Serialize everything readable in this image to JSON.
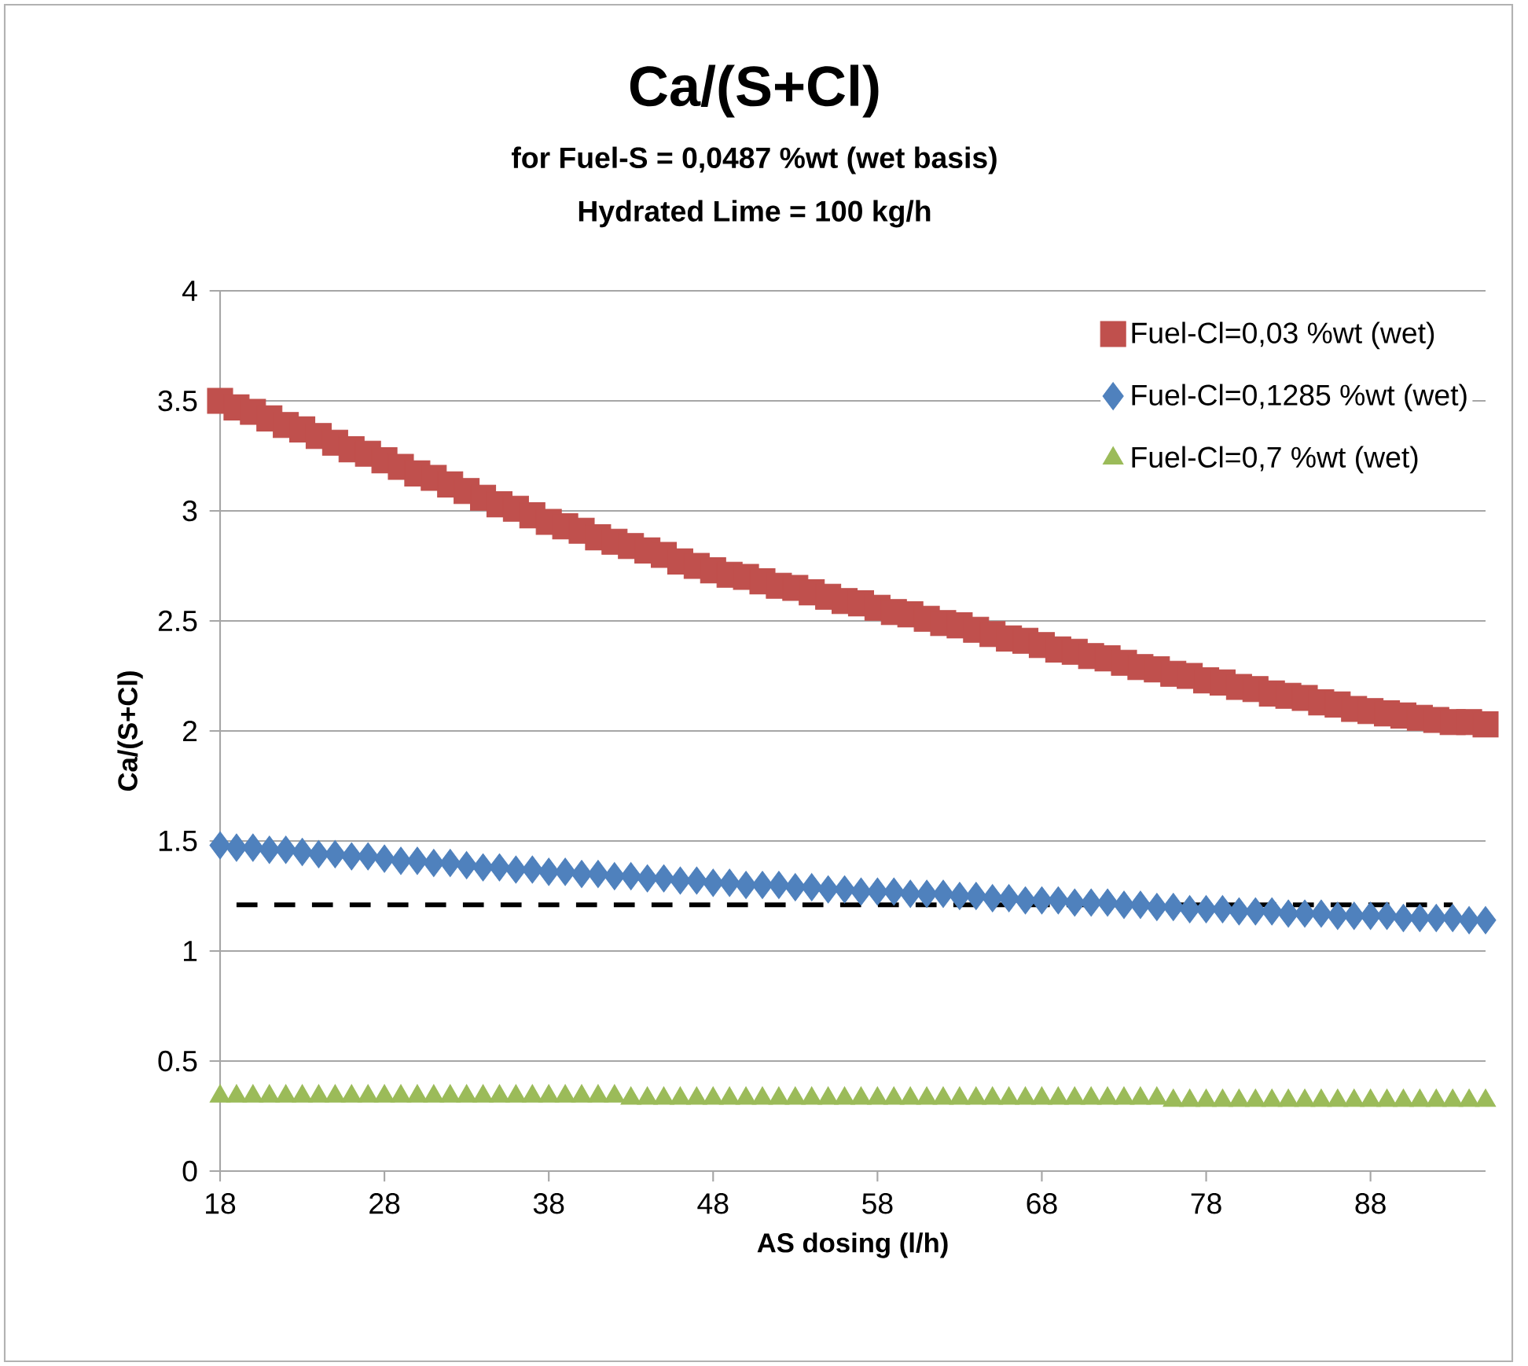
{
  "chart_data": {
    "type": "scatter",
    "title": "Ca/(S+Cl)",
    "subtitle": "for Fuel-S = 0,0487 %wt (wet basis)",
    "annotations": [
      "Hydrated Lime = 100 kg/h"
    ],
    "xlabel": "AS dosing (l/h)",
    "ylabel": "Ca/(S+Cl)",
    "x": [
      18,
      19,
      20,
      21,
      22,
      23,
      24,
      25,
      26,
      27,
      28,
      29,
      30,
      31,
      32,
      33,
      34,
      35,
      36,
      37,
      38,
      39,
      40,
      41,
      42,
      43,
      44,
      45,
      46,
      47,
      48,
      49,
      50,
      51,
      52,
      53,
      54,
      55,
      56,
      57,
      58,
      59,
      60,
      61,
      62,
      63,
      64,
      65,
      66,
      67,
      68,
      69,
      70,
      71,
      72,
      73,
      74,
      75,
      76,
      77,
      78,
      79,
      80,
      81,
      82,
      83,
      84,
      85,
      86,
      87,
      88,
      89,
      90,
      91,
      92,
      93,
      94,
      95
    ],
    "series": [
      {
        "name": "Fuel-Cl=0,03 %wt (wet)",
        "color": "#c0504d",
        "marker": "square",
        "values": [
          3.5,
          3.47,
          3.45,
          3.42,
          3.39,
          3.37,
          3.34,
          3.31,
          3.28,
          3.26,
          3.23,
          3.2,
          3.17,
          3.15,
          3.12,
          3.09,
          3.06,
          3.03,
          3.01,
          2.98,
          2.95,
          2.93,
          2.91,
          2.88,
          2.86,
          2.84,
          2.82,
          2.8,
          2.77,
          2.75,
          2.73,
          2.71,
          2.7,
          2.68,
          2.66,
          2.65,
          2.63,
          2.61,
          2.59,
          2.58,
          2.56,
          2.54,
          2.53,
          2.51,
          2.49,
          2.48,
          2.46,
          2.44,
          2.42,
          2.41,
          2.39,
          2.37,
          2.36,
          2.34,
          2.33,
          2.31,
          2.29,
          2.28,
          2.26,
          2.25,
          2.23,
          2.22,
          2.2,
          2.19,
          2.17,
          2.16,
          2.15,
          2.13,
          2.12,
          2.1,
          2.09,
          2.08,
          2.07,
          2.06,
          2.05,
          2.04,
          2.04,
          2.03
        ]
      },
      {
        "name": "Fuel-Cl=0,1285 %wt (wet)",
        "color": "#4f81bd",
        "marker": "diamond",
        "values": [
          1.48,
          1.47,
          1.47,
          1.46,
          1.46,
          1.45,
          1.44,
          1.44,
          1.43,
          1.43,
          1.42,
          1.41,
          1.41,
          1.4,
          1.4,
          1.39,
          1.38,
          1.38,
          1.37,
          1.37,
          1.36,
          1.36,
          1.35,
          1.35,
          1.34,
          1.34,
          1.33,
          1.33,
          1.32,
          1.32,
          1.31,
          1.31,
          1.3,
          1.3,
          1.3,
          1.29,
          1.29,
          1.28,
          1.28,
          1.27,
          1.27,
          1.27,
          1.26,
          1.26,
          1.26,
          1.25,
          1.25,
          1.24,
          1.24,
          1.23,
          1.23,
          1.23,
          1.22,
          1.22,
          1.22,
          1.21,
          1.21,
          1.2,
          1.2,
          1.19,
          1.19,
          1.19,
          1.18,
          1.18,
          1.18,
          1.17,
          1.17,
          1.17,
          1.16,
          1.16,
          1.16,
          1.16,
          1.15,
          1.15,
          1.15,
          1.15,
          1.14,
          1.14
        ]
      },
      {
        "name": "Fuel-Cl=0,7 %wt (wet)",
        "color": "#9bbb59",
        "marker": "triangle",
        "values": [
          0.34,
          0.34,
          0.34,
          0.34,
          0.34,
          0.34,
          0.34,
          0.34,
          0.34,
          0.34,
          0.34,
          0.34,
          0.34,
          0.34,
          0.34,
          0.34,
          0.34,
          0.34,
          0.34,
          0.34,
          0.34,
          0.34,
          0.34,
          0.34,
          0.34,
          0.33,
          0.33,
          0.33,
          0.33,
          0.33,
          0.33,
          0.33,
          0.33,
          0.33,
          0.33,
          0.33,
          0.33,
          0.33,
          0.33,
          0.33,
          0.33,
          0.33,
          0.33,
          0.33,
          0.33,
          0.33,
          0.33,
          0.33,
          0.33,
          0.33,
          0.33,
          0.33,
          0.33,
          0.33,
          0.33,
          0.33,
          0.33,
          0.33,
          0.32,
          0.32,
          0.32,
          0.32,
          0.32,
          0.32,
          0.32,
          0.32,
          0.32,
          0.32,
          0.32,
          0.32,
          0.32,
          0.32,
          0.32,
          0.32,
          0.32,
          0.32,
          0.32,
          0.32
        ]
      },
      {
        "type": "line",
        "color": "#000000",
        "marker": "none",
        "line_style": "dashed",
        "x": [
          19,
          93
        ],
        "values": [
          1.21,
          1.21
        ]
      }
    ],
    "xlim": [
      18,
      95
    ],
    "xticks": [
      18,
      28,
      38,
      48,
      58,
      68,
      78,
      88
    ],
    "ylim": [
      0,
      4
    ],
    "yticks": [
      0,
      0.5,
      1,
      1.5,
      2,
      2.5,
      3,
      3.5,
      4
    ],
    "grid": "y",
    "legend": "top right"
  }
}
